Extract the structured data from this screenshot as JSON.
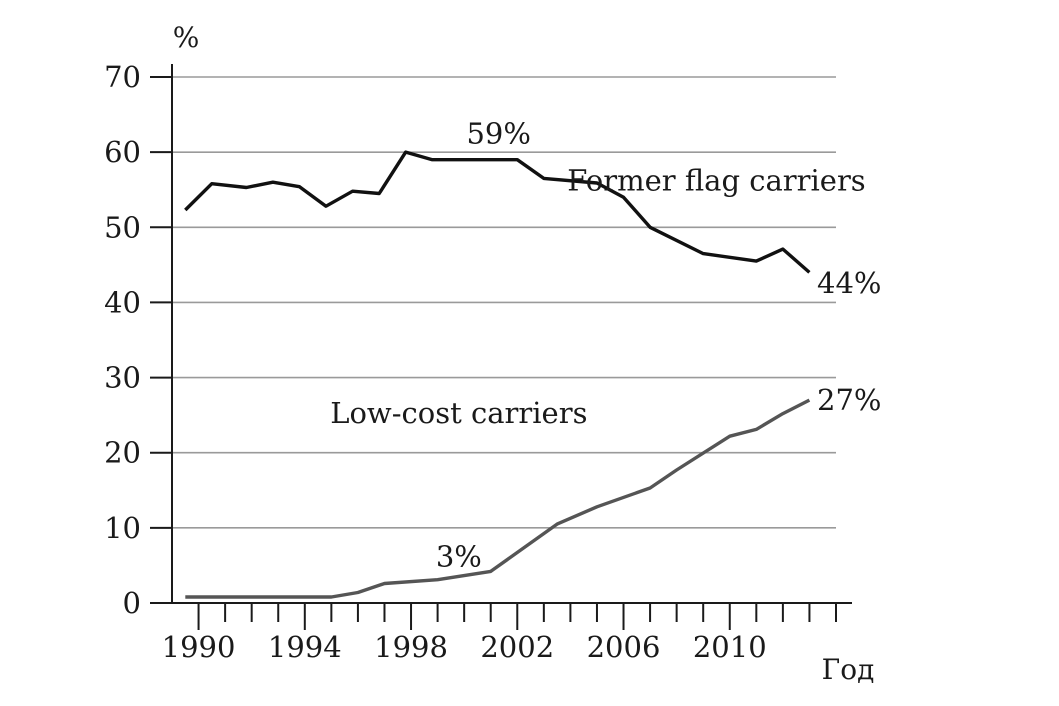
{
  "chart_data": {
    "type": "line",
    "y_unit": "%",
    "x_axis_label": "Год",
    "xlim": [
      1989,
      2014
    ],
    "ylim": [
      0,
      70
    ],
    "grid": true,
    "x_tick_labels": [
      "1990",
      "1994",
      "1998",
      "2002",
      "2006",
      "2010"
    ],
    "y_tick_labels": [
      "0",
      "10",
      "20",
      "30",
      "40",
      "50",
      "60",
      "70"
    ],
    "series": [
      {
        "name": "Former flag carriers",
        "color": "#111111",
        "x": [
          1989.5,
          1990.5,
          1991.8,
          1992.8,
          1993.8,
          1994.8,
          1995.8,
          1996.8,
          1997.8,
          1998.8,
          2002,
          2003,
          2005,
          2006,
          2007,
          2009,
          2011,
          2012,
          2013
        ],
        "y": [
          52.3,
          55.8,
          55.3,
          56,
          55.4,
          52.8,
          54.8,
          54.5,
          60,
          59,
          59,
          56.5,
          55.9,
          54,
          50,
          46.5,
          45.5,
          47.1,
          44
        ]
      },
      {
        "name": "Low-cost carriers",
        "color": "#555555",
        "x": [
          1989.5,
          1995,
          1996,
          1997,
          1999,
          2001,
          2003.5,
          2005,
          2007,
          2008,
          2010,
          2011,
          2012,
          2013
        ],
        "y": [
          0.8,
          0.8,
          1.4,
          2.6,
          3.1,
          4.2,
          10.5,
          12.8,
          15.3,
          17.7,
          22.2,
          23.1,
          25.2,
          27
        ]
      }
    ],
    "annotations": [
      {
        "text": "59%",
        "x": 2001.3,
        "y": 62.5
      },
      {
        "text": "Former flag carriers",
        "x": 2009.5,
        "y": 56.2
      },
      {
        "text": "44%",
        "x": 2014.5,
        "y": 42.6
      },
      {
        "text": "27%",
        "x": 2014.5,
        "y": 27
      },
      {
        "text": "Low-cost carriers",
        "x": 1999.8,
        "y": 25.3
      },
      {
        "text": "3%",
        "x": 1999.8,
        "y": 6.2
      }
    ]
  }
}
